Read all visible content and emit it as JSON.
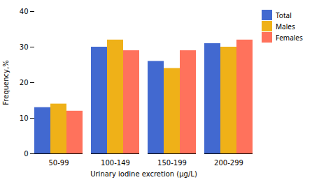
{
  "chart_data": {
    "type": "bar",
    "categories": [
      "50-99",
      "100-149",
      "150-199",
      "200-299"
    ],
    "series": [
      {
        "name": "Total",
        "values": [
          13,
          30,
          26,
          31
        ]
      },
      {
        "name": "Males",
        "values": [
          14,
          32,
          24,
          30
        ]
      },
      {
        "name": "Females",
        "values": [
          12,
          29,
          29,
          32
        ]
      }
    ],
    "xlabel": "Urinary iodine excretion (μg/L)",
    "ylabel": "Frequency,%",
    "ylim": [
      0,
      40
    ],
    "yticks": [
      0,
      10,
      20,
      30,
      40
    ],
    "legend": "right"
  }
}
